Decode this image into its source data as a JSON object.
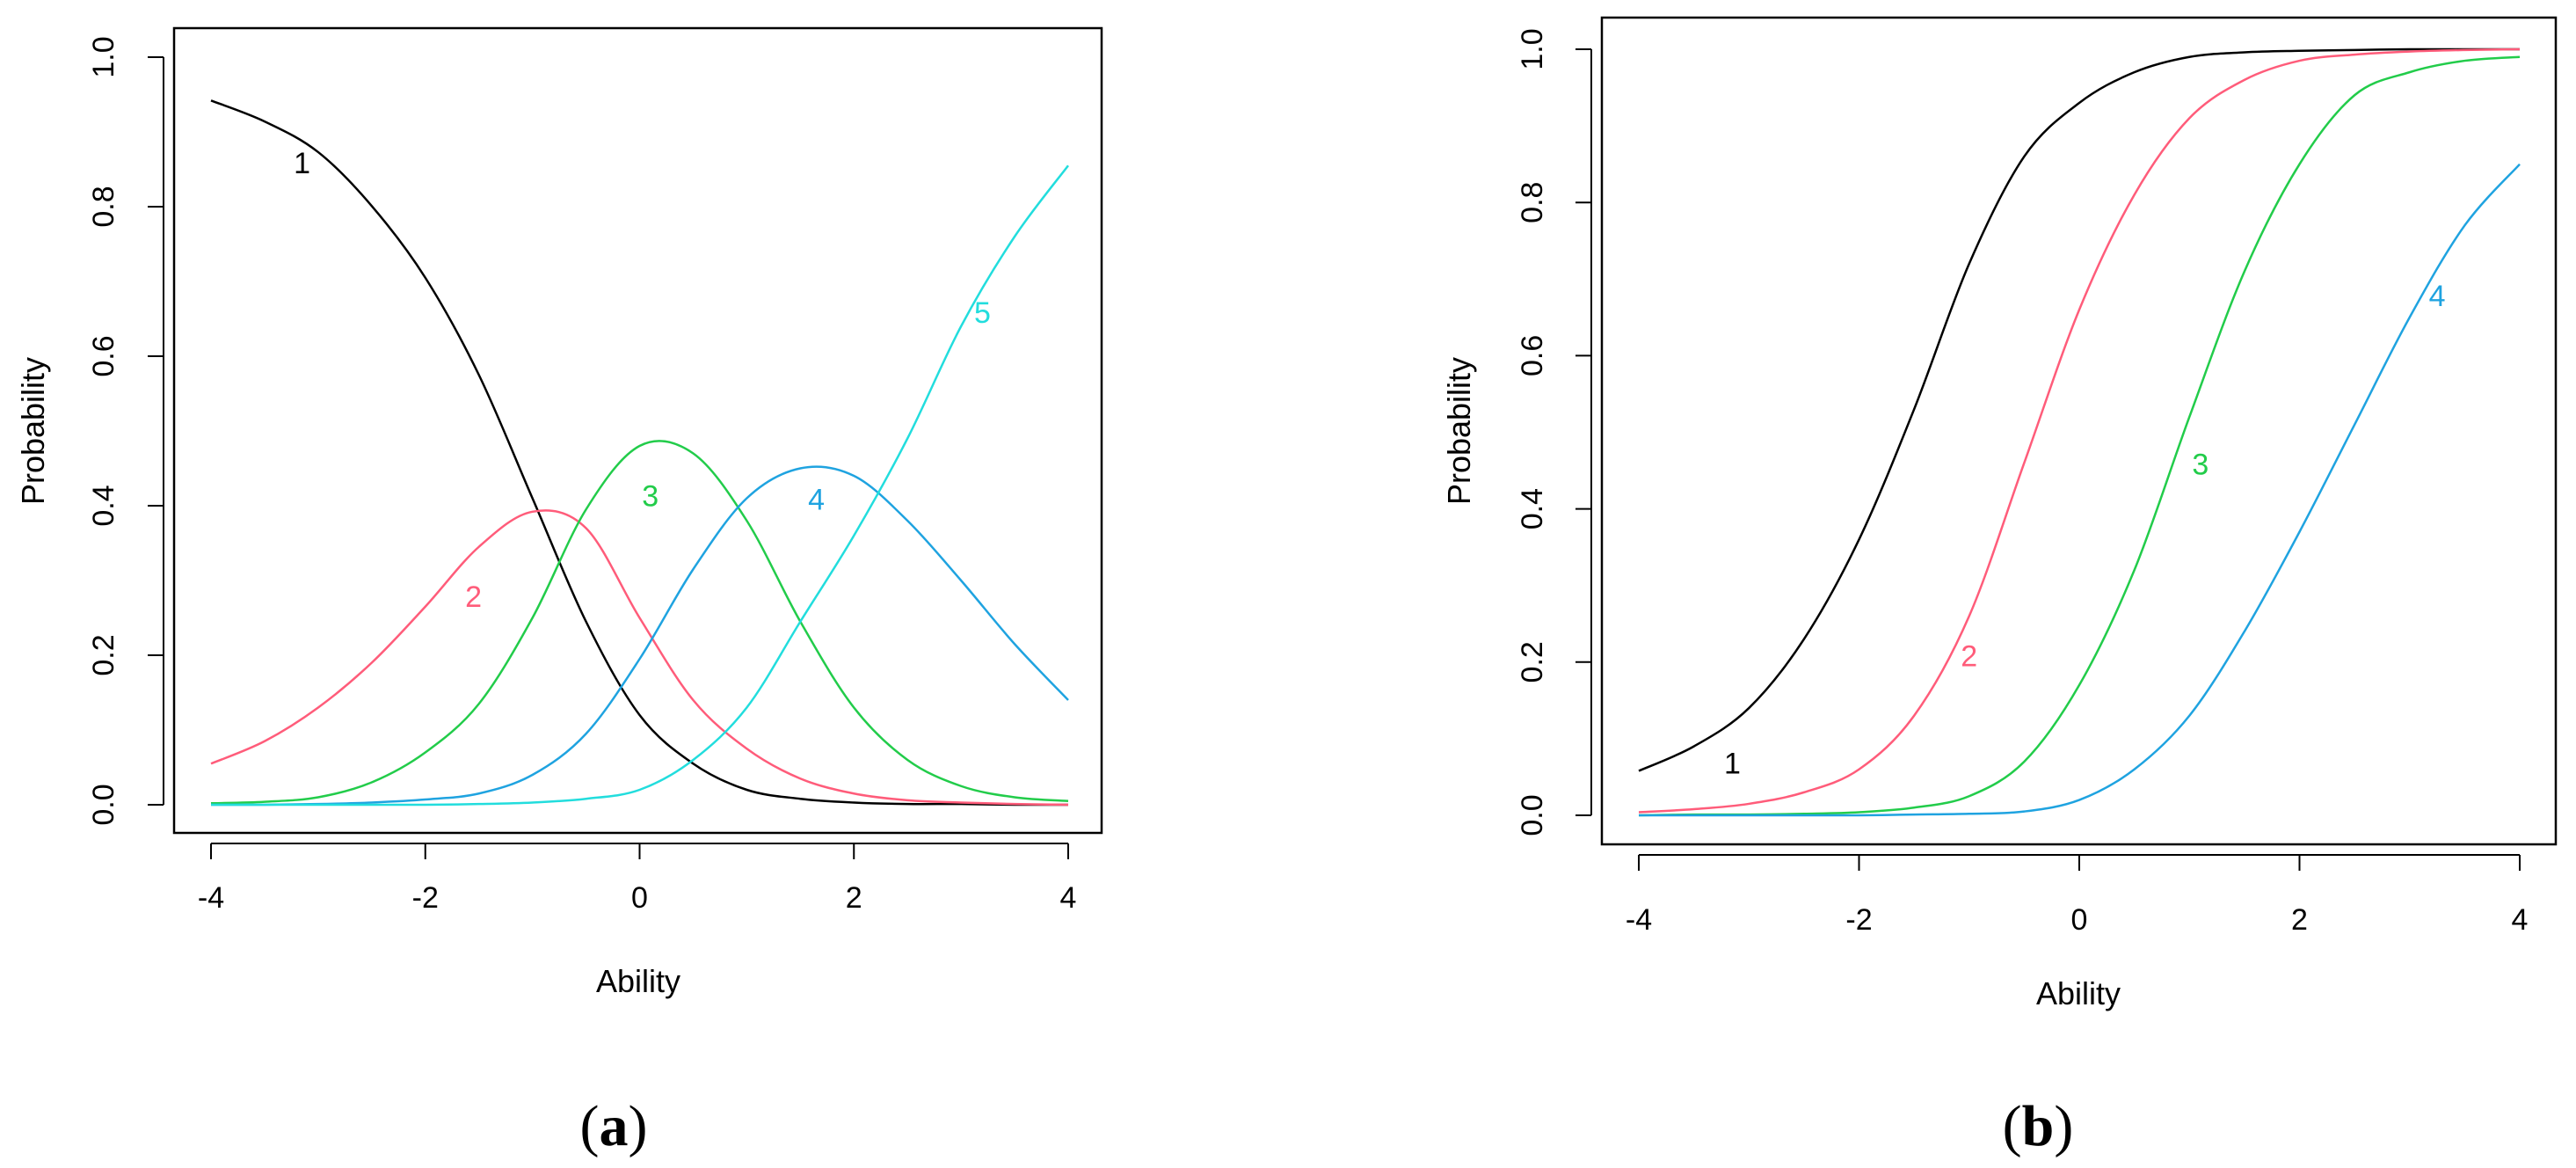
{
  "chart_data": [
    {
      "panel": "a",
      "type": "line",
      "caption_letter": "a",
      "xlabel": "Ability",
      "ylabel": "Probability",
      "xlim": [
        -4,
        4
      ],
      "ylim": [
        0,
        1
      ],
      "x_ticks": [
        -4,
        -2,
        0,
        2,
        4
      ],
      "y_ticks": [
        0.0,
        0.2,
        0.4,
        0.6,
        0.8,
        1.0
      ],
      "x_tick_labels": [
        "-4",
        "-2",
        "0",
        "2",
        "4"
      ],
      "y_tick_labels": [
        "0.0",
        "0.2",
        "0.4",
        "0.6",
        "0.8",
        "1.0"
      ],
      "grid": false,
      "x": [
        -4,
        -3.5,
        -3,
        -2.5,
        -2,
        -1.5,
        -1,
        -0.5,
        0,
        0.5,
        1,
        1.5,
        2,
        2.5,
        3,
        3.5,
        4
      ],
      "series": [
        {
          "name": "1",
          "color": "#000000",
          "label_at": [
            -3.15,
            0.855
          ],
          "values": [
            0.942,
            0.914,
            0.873,
            0.801,
            0.705,
            0.575,
            0.41,
            0.245,
            0.12,
            0.055,
            0.02,
            0.008,
            0.003,
            0.001,
            0.001,
            0.0,
            0.0
          ]
        },
        {
          "name": "2",
          "color": "#ff5c7a",
          "label_at": [
            -1.55,
            0.275
          ],
          "values": [
            0.055,
            0.085,
            0.13,
            0.19,
            0.265,
            0.345,
            0.392,
            0.37,
            0.25,
            0.14,
            0.075,
            0.035,
            0.015,
            0.006,
            0.003,
            0.001,
            0.0
          ]
        },
        {
          "name": "3",
          "color": "#22cc4a",
          "label_at": [
            0.1,
            0.41
          ],
          "values": [
            0.002,
            0.004,
            0.01,
            0.03,
            0.07,
            0.135,
            0.25,
            0.395,
            0.48,
            0.47,
            0.38,
            0.245,
            0.13,
            0.06,
            0.025,
            0.01,
            0.005
          ]
        },
        {
          "name": "4",
          "color": "#1fa3e0",
          "label_at": [
            1.65,
            0.405
          ],
          "values": [
            0.0,
            0.0,
            0.001,
            0.003,
            0.007,
            0.015,
            0.04,
            0.095,
            0.195,
            0.315,
            0.41,
            0.45,
            0.44,
            0.38,
            0.3,
            0.215,
            0.14
          ]
        },
        {
          "name": "5",
          "color": "#22dddd",
          "label_at": [
            3.2,
            0.655
          ],
          "values": [
            0.0,
            0.0,
            0.0,
            0.0,
            0.0,
            0.001,
            0.003,
            0.008,
            0.02,
            0.06,
            0.13,
            0.245,
            0.36,
            0.49,
            0.64,
            0.76,
            0.855
          ]
        }
      ]
    },
    {
      "panel": "b",
      "type": "line",
      "caption_letter": "b",
      "xlabel": "Ability",
      "ylabel": "Probability",
      "xlim": [
        -4,
        4
      ],
      "ylim": [
        0,
        1
      ],
      "x_ticks": [
        -4,
        -2,
        0,
        2,
        4
      ],
      "y_ticks": [
        0.0,
        0.2,
        0.4,
        0.6,
        0.8,
        1.0
      ],
      "x_tick_labels": [
        "-4",
        "-2",
        "0",
        "2",
        "4"
      ],
      "y_tick_labels": [
        "0.0",
        "0.2",
        "0.4",
        "0.6",
        "0.8",
        "1.0"
      ],
      "grid": false,
      "x": [
        -4,
        -3.5,
        -3,
        -2.5,
        -2,
        -1.5,
        -1,
        -0.5,
        0,
        0.5,
        1,
        1.5,
        2,
        2.5,
        3,
        3.5,
        4
      ],
      "series": [
        {
          "name": "1",
          "color": "#000000",
          "label_at": [
            -3.15,
            0.065
          ],
          "values": [
            0.058,
            0.09,
            0.14,
            0.23,
            0.36,
            0.53,
            0.72,
            0.86,
            0.93,
            0.97,
            0.99,
            0.996,
            0.998,
            0.999,
            1.0,
            1.0,
            1.0
          ]
        },
        {
          "name": "2",
          "color": "#ff5c7a",
          "label_at": [
            -1.0,
            0.205
          ],
          "values": [
            0.004,
            0.008,
            0.015,
            0.03,
            0.06,
            0.13,
            0.26,
            0.46,
            0.66,
            0.81,
            0.91,
            0.96,
            0.985,
            0.993,
            0.997,
            0.999,
            1.0
          ]
        },
        {
          "name": "3",
          "color": "#22cc4a",
          "label_at": [
            1.1,
            0.455
          ],
          "values": [
            0.0,
            0.001,
            0.001,
            0.002,
            0.004,
            0.01,
            0.025,
            0.07,
            0.17,
            0.32,
            0.52,
            0.71,
            0.85,
            0.94,
            0.97,
            0.985,
            0.99
          ]
        },
        {
          "name": "4",
          "color": "#1fa3e0",
          "label_at": [
            3.25,
            0.675
          ],
          "values": [
            0.0,
            0.0,
            0.0,
            0.0,
            0.0,
            0.001,
            0.002,
            0.005,
            0.02,
            0.06,
            0.13,
            0.24,
            0.37,
            0.51,
            0.65,
            0.77,
            0.85
          ]
        }
      ]
    }
  ]
}
